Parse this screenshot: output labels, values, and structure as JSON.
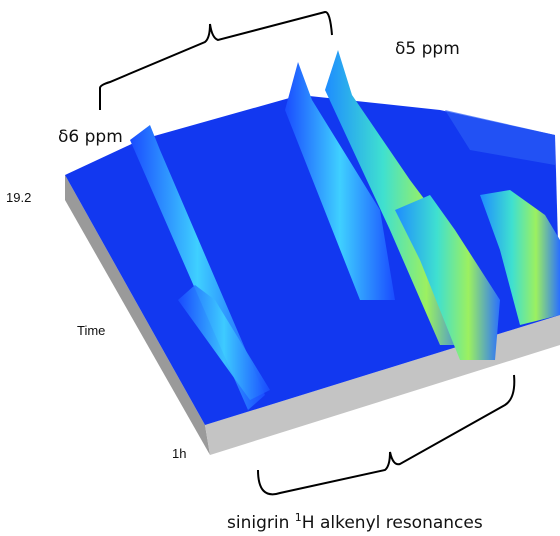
{
  "labels": {
    "ppm_left": "δ6 ppm",
    "ppm_right": "δ5 ppm",
    "time_top": "19.2",
    "time_axis": "Time",
    "time_bottom": "1h"
  },
  "caption": {
    "before": "sinigrin ",
    "superscript": "1",
    "after": "H alkenyl resonances"
  }
}
